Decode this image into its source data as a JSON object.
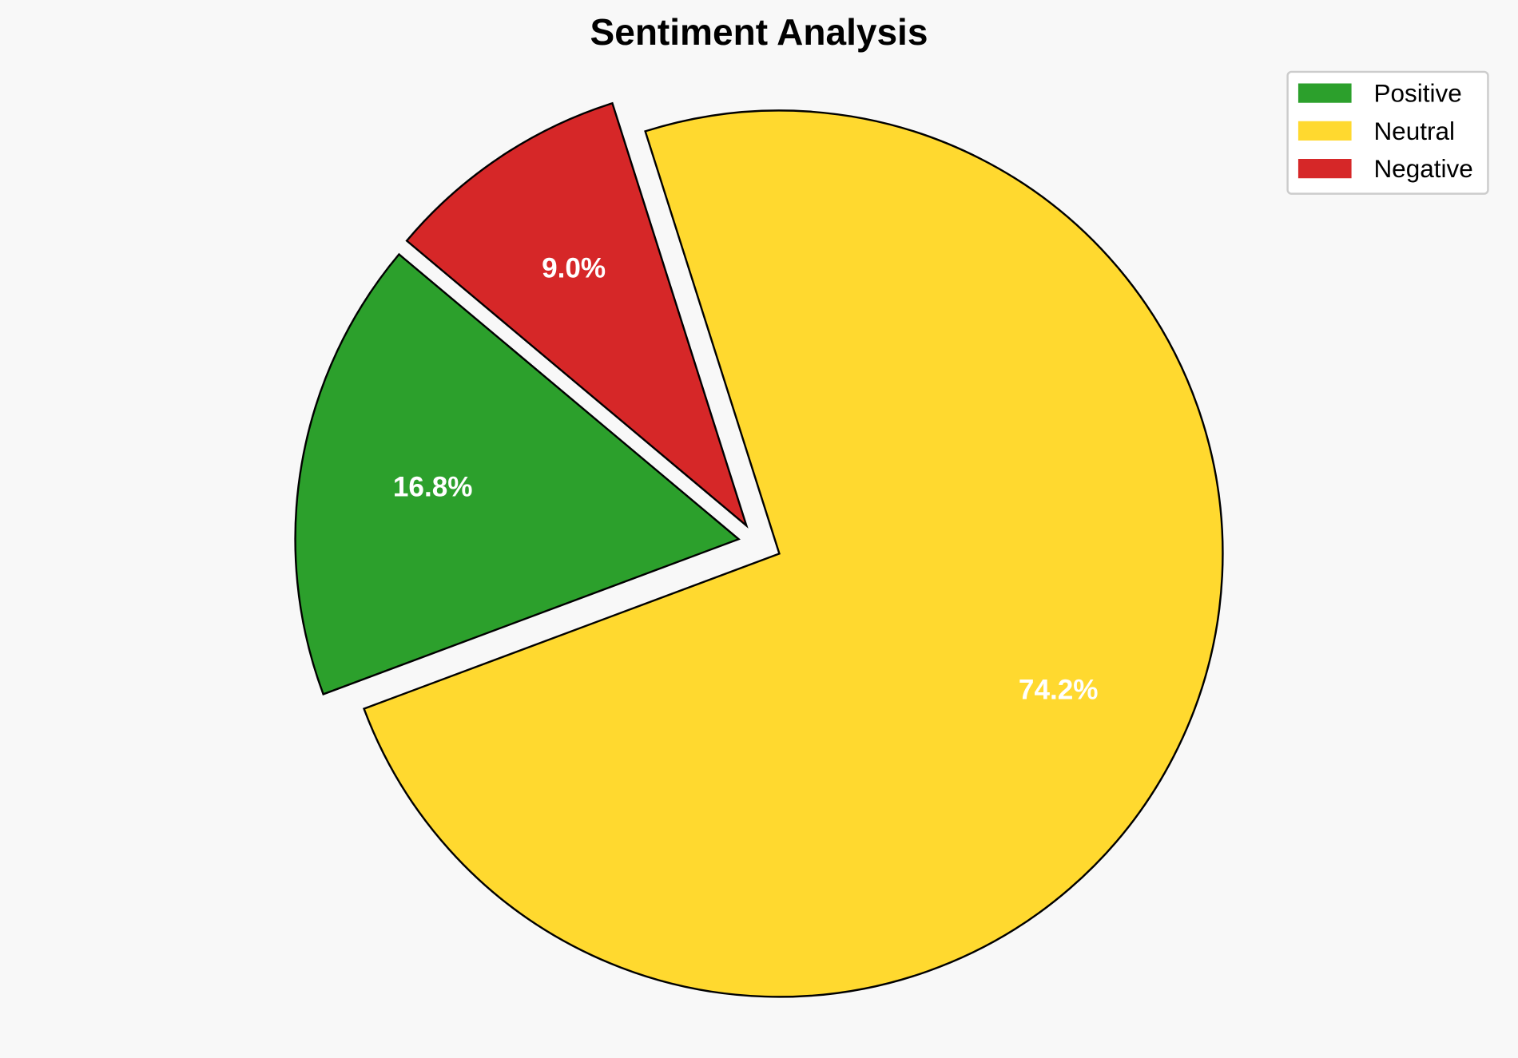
{
  "chart_data": {
    "type": "pie",
    "title": "Sentiment Analysis",
    "categories": [
      "Positive",
      "Neutral",
      "Negative"
    ],
    "values": [
      16.8,
      74.2,
      9.0
    ],
    "labels": [
      "16.8%",
      "74.2%",
      "9.0%"
    ],
    "colors": [
      "#2ca02c",
      "#ffd92f",
      "#d62728"
    ],
    "exploded": [
      "Positive",
      "Negative"
    ],
    "start_angle_deg": 140,
    "direction": "counterclockwise",
    "legend": {
      "placement": "top-right",
      "entries": [
        "Positive",
        "Neutral",
        "Negative"
      ]
    }
  }
}
